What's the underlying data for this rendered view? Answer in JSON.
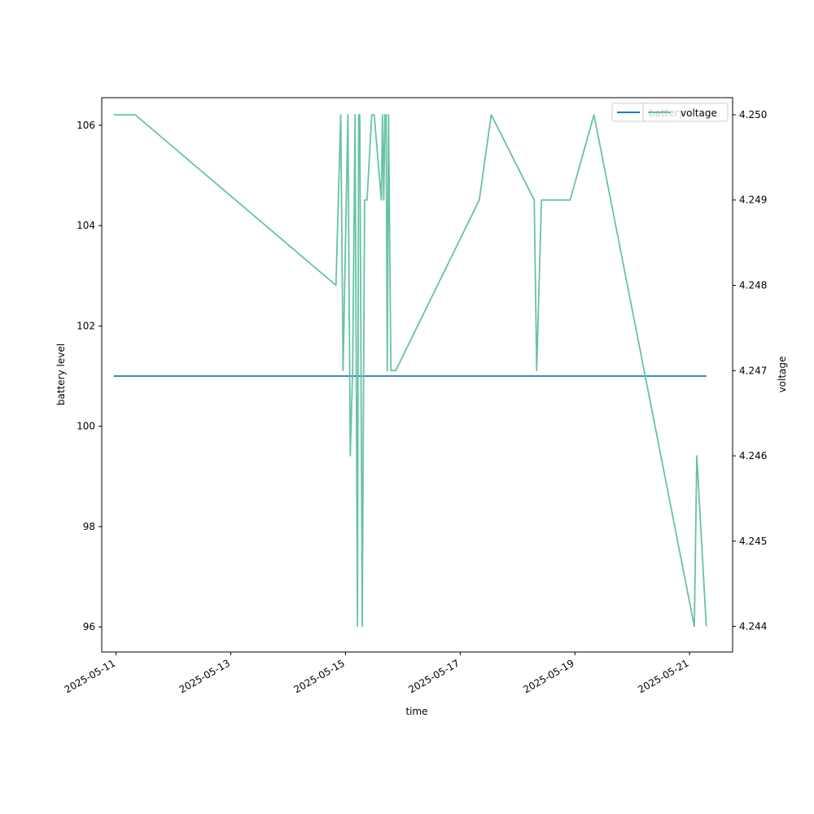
{
  "chart_data": {
    "type": "line",
    "xlabel": "time",
    "ylabel_left": "battery level",
    "ylabel_right": "voltage",
    "xlim": [
      "2025-05-10T18:00",
      "2025-05-21T18:00"
    ],
    "ylim_left": [
      95.5,
      106.55
    ],
    "ylim_right": [
      4.2437,
      4.2502
    ],
    "x_ticks": [
      "2025-05-11",
      "2025-05-13",
      "2025-05-15",
      "2025-05-17",
      "2025-05-19",
      "2025-05-21"
    ],
    "y_ticks_left": [
      96,
      98,
      100,
      102,
      104,
      106
    ],
    "y_ticks_right": [
      4.244,
      4.245,
      4.246,
      4.247,
      4.248,
      4.249,
      4.25
    ],
    "y_tick_labels_right": [
      "4.244",
      "4.245",
      "4.246",
      "4.247",
      "4.248",
      "4.249",
      "4.250"
    ],
    "grid": false,
    "legend_placement": "top-right",
    "series": [
      {
        "name": "battery",
        "axis": "left",
        "color": "#1f77b4",
        "x": [
          "2025-05-10T23:00",
          "2025-05-21T07:00"
        ],
        "y": [
          101,
          101
        ]
      },
      {
        "name": "voltage",
        "axis": "right",
        "color": "#66c2a5",
        "x": [
          "2025-05-10T23:00",
          "2025-05-11T08:00",
          "2025-05-14T20:00",
          "2025-05-14T22:00",
          "2025-05-14T23:00",
          "2025-05-15T01:00",
          "2025-05-15T02:00",
          "2025-05-15T03:00",
          "2025-05-15T04:00",
          "2025-05-15T05:00",
          "2025-05-15T05:30",
          "2025-05-15T06:00",
          "2025-05-15T07:00",
          "2025-05-15T08:00",
          "2025-05-15T09:00",
          "2025-05-15T11:00",
          "2025-05-15T12:00",
          "2025-05-15T15:00",
          "2025-05-15T15:30",
          "2025-05-15T16:00",
          "2025-05-15T16:30",
          "2025-05-15T17:00",
          "2025-05-15T17:30",
          "2025-05-15T18:00",
          "2025-05-15T19:00",
          "2025-05-15T20:00",
          "2025-05-15T21:00",
          "2025-05-17T08:00",
          "2025-05-17T13:00",
          "2025-05-18T07:00",
          "2025-05-18T08:00",
          "2025-05-18T10:00",
          "2025-05-18T22:00",
          "2025-05-19T08:00",
          "2025-05-21T02:00",
          "2025-05-21T03:00",
          "2025-05-21T07:00"
        ],
        "y": [
          4.25,
          4.25,
          4.248,
          4.25,
          4.247,
          4.25,
          4.246,
          4.247,
          4.25,
          4.244,
          4.25,
          4.25,
          4.244,
          4.249,
          4.249,
          4.25,
          4.25,
          4.249,
          4.25,
          4.249,
          4.25,
          4.25,
          4.247,
          4.25,
          4.247,
          4.247,
          4.247,
          4.249,
          4.25,
          4.249,
          4.247,
          4.249,
          4.249,
          4.25,
          4.244,
          4.246,
          4.244
        ]
      }
    ]
  }
}
